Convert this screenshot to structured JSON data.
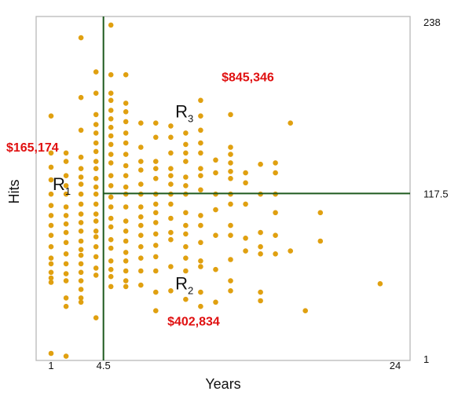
{
  "chart_data": {
    "type": "scatter",
    "xlabel": "Years",
    "ylabel": "Hits",
    "xlim": [
      0,
      25
    ],
    "ylim": [
      0,
      242
    ],
    "x_ticks": [
      "1",
      "4.5",
      "24"
    ],
    "x_tick_values": [
      1,
      4.5,
      24
    ],
    "y_ticks": [
      "1",
      "117.5",
      "238"
    ],
    "y_tick_values": [
      1,
      117.5,
      238
    ],
    "point_color": "#E0A010",
    "split_color": "#1E5A1E",
    "splits": {
      "years": 4.5,
      "hits": 117.5
    },
    "regions": [
      {
        "label": "R",
        "subscript": "1",
        "salary": "$165,174",
        "at": [
          1.1,
          120
        ]
      },
      {
        "label": "R",
        "subscript": "2",
        "salary": "$402,834",
        "at": [
          9.3,
          50
        ]
      },
      {
        "label": "R",
        "subscript": "3",
        "salary": "$845,346",
        "at": [
          9.3,
          171
        ]
      }
    ],
    "points": [
      [
        1,
        172
      ],
      [
        1,
        146
      ],
      [
        1,
        136
      ],
      [
        1,
        127
      ],
      [
        1,
        117
      ],
      [
        1,
        109
      ],
      [
        1,
        102
      ],
      [
        1,
        95
      ],
      [
        1,
        88
      ],
      [
        1,
        80
      ],
      [
        1,
        72
      ],
      [
        1,
        68
      ],
      [
        1,
        62
      ],
      [
        1,
        58
      ],
      [
        1,
        55
      ],
      [
        1,
        5
      ],
      [
        2,
        146
      ],
      [
        2,
        140
      ],
      [
        2,
        130
      ],
      [
        2,
        123
      ],
      [
        2,
        117
      ],
      [
        2,
        108
      ],
      [
        2,
        102
      ],
      [
        2,
        96
      ],
      [
        2,
        90
      ],
      [
        2,
        83
      ],
      [
        2,
        75
      ],
      [
        2,
        68
      ],
      [
        2,
        61
      ],
      [
        2,
        56
      ],
      [
        2,
        44
      ],
      [
        2,
        38
      ],
      [
        2,
        3
      ],
      [
        3,
        227
      ],
      [
        3,
        185
      ],
      [
        3,
        162
      ],
      [
        3,
        143
      ],
      [
        3,
        135
      ],
      [
        3,
        129
      ],
      [
        3,
        124
      ],
      [
        3,
        117
      ],
      [
        3,
        110
      ],
      [
        3,
        103
      ],
      [
        3,
        97
      ],
      [
        3,
        91
      ],
      [
        3,
        84
      ],
      [
        3,
        78
      ],
      [
        3,
        74
      ],
      [
        3,
        68
      ],
      [
        3,
        62
      ],
      [
        3,
        56
      ],
      [
        3,
        50
      ],
      [
        3,
        44
      ],
      [
        3,
        41
      ],
      [
        4,
        203
      ],
      [
        4,
        188
      ],
      [
        4,
        173
      ],
      [
        4,
        166
      ],
      [
        4,
        160
      ],
      [
        4,
        153
      ],
      [
        4,
        147
      ],
      [
        4,
        140
      ],
      [
        4,
        135
      ],
      [
        4,
        128
      ],
      [
        4,
        122
      ],
      [
        4,
        117
      ],
      [
        4,
        110
      ],
      [
        4,
        103
      ],
      [
        4,
        98
      ],
      [
        4,
        91
      ],
      [
        4,
        87
      ],
      [
        4,
        80
      ],
      [
        4,
        73
      ],
      [
        4,
        65
      ],
      [
        4,
        60
      ],
      [
        4,
        30
      ],
      [
        5,
        236
      ],
      [
        5,
        201
      ],
      [
        5,
        188
      ],
      [
        5,
        183
      ],
      [
        5,
        176
      ],
      [
        5,
        170
      ],
      [
        5,
        164
      ],
      [
        5,
        158
      ],
      [
        5,
        152
      ],
      [
        5,
        145
      ],
      [
        5,
        139
      ],
      [
        5,
        130
      ],
      [
        5,
        123
      ],
      [
        5,
        115
      ],
      [
        5,
        108
      ],
      [
        5,
        100
      ],
      [
        5,
        94
      ],
      [
        5,
        85
      ],
      [
        5,
        79
      ],
      [
        5,
        70
      ],
      [
        5,
        64
      ],
      [
        5,
        59
      ],
      [
        5,
        52
      ],
      [
        6,
        201
      ],
      [
        6,
        181
      ],
      [
        6,
        175
      ],
      [
        6,
        168
      ],
      [
        6,
        160
      ],
      [
        6,
        153
      ],
      [
        6,
        145
      ],
      [
        6,
        137
      ],
      [
        6,
        130
      ],
      [
        6,
        122
      ],
      [
        6,
        117
      ],
      [
        6,
        108
      ],
      [
        6,
        98
      ],
      [
        6,
        91
      ],
      [
        6,
        84
      ],
      [
        6,
        76
      ],
      [
        6,
        70
      ],
      [
        6,
        63
      ],
      [
        6,
        56
      ],
      [
        6,
        52
      ],
      [
        7,
        167
      ],
      [
        7,
        150
      ],
      [
        7,
        140
      ],
      [
        7,
        134
      ],
      [
        7,
        124
      ],
      [
        7,
        117
      ],
      [
        7,
        108
      ],
      [
        7,
        101
      ],
      [
        7,
        95
      ],
      [
        7,
        88
      ],
      [
        7,
        80
      ],
      [
        7,
        72
      ],
      [
        7,
        63
      ],
      [
        7,
        53
      ],
      [
        8,
        167
      ],
      [
        8,
        157
      ],
      [
        8,
        140
      ],
      [
        8,
        135
      ],
      [
        8,
        128
      ],
      [
        8,
        117
      ],
      [
        8,
        110
      ],
      [
        8,
        104
      ],
      [
        8,
        97
      ],
      [
        8,
        89
      ],
      [
        8,
        81
      ],
      [
        8,
        73
      ],
      [
        8,
        63
      ],
      [
        8,
        48
      ],
      [
        8,
        35
      ],
      [
        9,
        165
      ],
      [
        9,
        157
      ],
      [
        9,
        146
      ],
      [
        9,
        135
      ],
      [
        9,
        130
      ],
      [
        9,
        124
      ],
      [
        9,
        117
      ],
      [
        9,
        110
      ],
      [
        9,
        100
      ],
      [
        9,
        90
      ],
      [
        9,
        85
      ],
      [
        9,
        66
      ],
      [
        9,
        49
      ],
      [
        10,
        160
      ],
      [
        10,
        152
      ],
      [
        10,
        146
      ],
      [
        10,
        140
      ],
      [
        10,
        129
      ],
      [
        10,
        123
      ],
      [
        10,
        117
      ],
      [
        10,
        104
      ],
      [
        10,
        95
      ],
      [
        10,
        89
      ],
      [
        10,
        80
      ],
      [
        10,
        72
      ],
      [
        10,
        63
      ],
      [
        10,
        43
      ],
      [
        11,
        183
      ],
      [
        11,
        172
      ],
      [
        11,
        162
      ],
      [
        11,
        153
      ],
      [
        11,
        146
      ],
      [
        11,
        135
      ],
      [
        11,
        130
      ],
      [
        11,
        120
      ],
      [
        11,
        102
      ],
      [
        11,
        95
      ],
      [
        11,
        83
      ],
      [
        11,
        70
      ],
      [
        11,
        66
      ],
      [
        11,
        48
      ],
      [
        11,
        38
      ],
      [
        12,
        141
      ],
      [
        12,
        132
      ],
      [
        12,
        117
      ],
      [
        12,
        106
      ],
      [
        12,
        88
      ],
      [
        12,
        64
      ],
      [
        12,
        41
      ],
      [
        13,
        173
      ],
      [
        13,
        150
      ],
      [
        13,
        145
      ],
      [
        13,
        139
      ],
      [
        13,
        133
      ],
      [
        13,
        128
      ],
      [
        13,
        117
      ],
      [
        13,
        110
      ],
      [
        13,
        95
      ],
      [
        13,
        88
      ],
      [
        13,
        71
      ],
      [
        13,
        56
      ],
      [
        13,
        49
      ],
      [
        14,
        132
      ],
      [
        14,
        125
      ],
      [
        14,
        110
      ],
      [
        14,
        86
      ],
      [
        14,
        77
      ],
      [
        15,
        138
      ],
      [
        15,
        117
      ],
      [
        15,
        90
      ],
      [
        15,
        80
      ],
      [
        15,
        75
      ],
      [
        15,
        48
      ],
      [
        15,
        42
      ],
      [
        16,
        139
      ],
      [
        16,
        132
      ],
      [
        16,
        117
      ],
      [
        16,
        104
      ],
      [
        16,
        88
      ],
      [
        16,
        75
      ],
      [
        17,
        167
      ],
      [
        17,
        77
      ],
      [
        18,
        35
      ],
      [
        19,
        104
      ],
      [
        19,
        84
      ],
      [
        23,
        54
      ]
    ]
  }
}
